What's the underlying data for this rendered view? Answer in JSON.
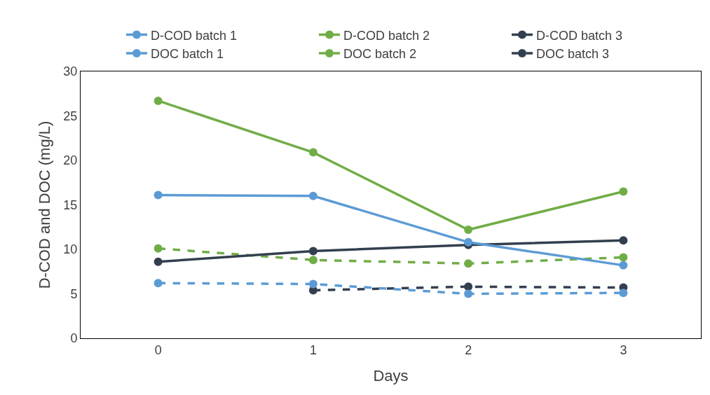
{
  "chart_data": {
    "type": "line",
    "xlabel": "Days",
    "ylabel": "D-COD and DOC (mg/L)",
    "categories": [
      "0",
      "1",
      "2",
      "3"
    ],
    "ylim": [
      0,
      30
    ],
    "yticks": [
      0,
      5,
      10,
      15,
      20,
      25,
      30
    ],
    "grid": false,
    "legend": "top",
    "marker": "circle",
    "series": [
      {
        "name": "D-COD batch 1",
        "color": "#5b9bd5",
        "line_style": "solid",
        "values": [
          16.1,
          16.0,
          10.8,
          8.2
        ]
      },
      {
        "name": "D-COD batch 2",
        "color": "#70ad47",
        "line_style": "solid",
        "values": [
          26.7,
          20.9,
          12.2,
          16.5
        ]
      },
      {
        "name": "D-COD batch 3",
        "color": "#333f50",
        "line_style": "solid",
        "values": [
          8.6,
          9.8,
          10.5,
          11.0
        ]
      },
      {
        "name": "DOC batch 1",
        "color": "#5b9bd5",
        "line_style": "dashed",
        "values": [
          6.2,
          6.1,
          5.0,
          5.1
        ]
      },
      {
        "name": "DOC batch 2",
        "color": "#70ad47",
        "line_style": "dashed",
        "values": [
          10.1,
          8.8,
          8.4,
          9.1
        ]
      },
      {
        "name": "DOC batch 3",
        "color": "#333f50",
        "line_style": "dashed",
        "values": [
          null,
          5.4,
          5.8,
          5.7
        ]
      }
    ]
  }
}
